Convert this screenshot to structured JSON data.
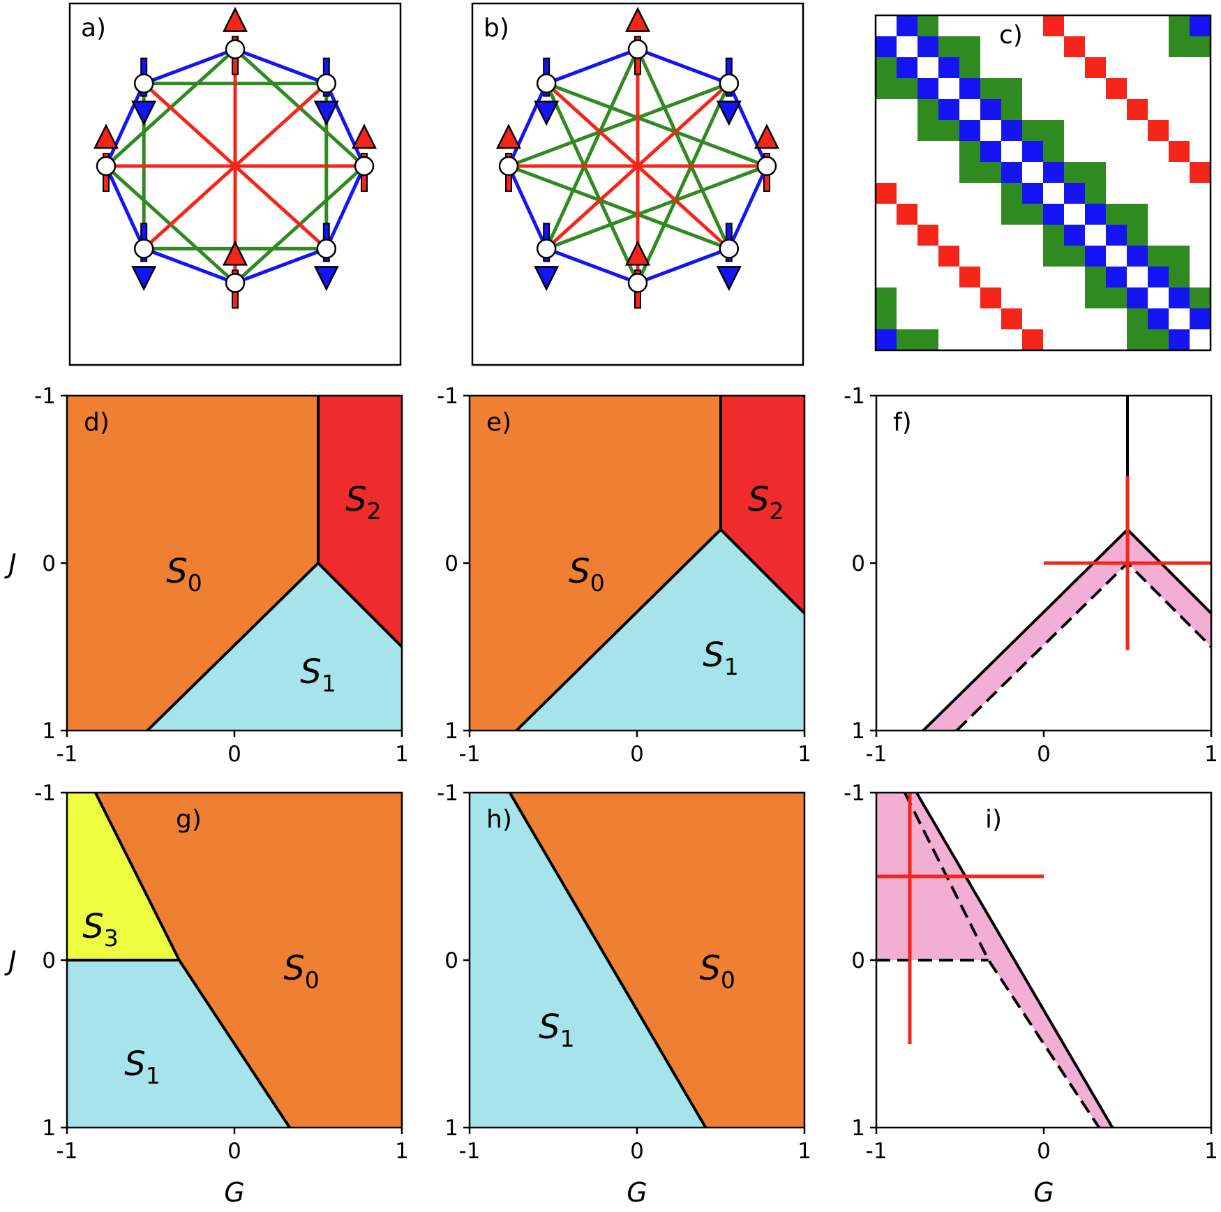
{
  "colors": {
    "S0": "#ef7f33",
    "S1": "#a6e3ea",
    "S2": "#ef2b2b",
    "S3": "#eefd3f",
    "uncertain": "#f3aed4",
    "bond_nn": "#1414f5",
    "bond_nnn": "#2f8a1f",
    "bond_opposite": "#f5251a",
    "spin_up": "#f5251a",
    "spin_down": "#1414f5"
  },
  "panels": {
    "a": {
      "label": "a)"
    },
    "b": {
      "label": "b)"
    },
    "c": {
      "label": "c)"
    },
    "d": {
      "label": "d)",
      "regions": [
        {
          "sym": "S",
          "sub": "0"
        },
        {
          "sym": "S",
          "sub": "2"
        },
        {
          "sym": "S",
          "sub": "1"
        }
      ]
    },
    "e": {
      "label": "e)",
      "regions": [
        {
          "sym": "S",
          "sub": "0"
        },
        {
          "sym": "S",
          "sub": "2"
        },
        {
          "sym": "S",
          "sub": "1"
        }
      ]
    },
    "f": {
      "label": "f)"
    },
    "g": {
      "label": "g)",
      "regions": [
        {
          "sym": "S",
          "sub": "3"
        },
        {
          "sym": "S",
          "sub": "0"
        },
        {
          "sym": "S",
          "sub": "1"
        }
      ]
    },
    "h": {
      "label": "h)",
      "regions": [
        {
          "sym": "S",
          "sub": "0"
        },
        {
          "sym": "S",
          "sub": "1"
        }
      ]
    },
    "i": {
      "label": "i)"
    }
  },
  "axes": {
    "xlabel": "G",
    "ylabel": "J",
    "xticks": [
      "-1",
      "0",
      "1"
    ],
    "yticks": [
      "-1",
      "0",
      "1"
    ]
  },
  "chart_data": [
    {
      "panel": "d",
      "type": "area",
      "xlabel": "",
      "ylabel": "J",
      "xlim": [
        -1,
        1
      ],
      "ylim": [
        -1,
        1
      ],
      "y_inverted": true,
      "boundaries": [
        [
          [
            0.5,
            -1
          ],
          [
            0.5,
            0
          ]
        ],
        [
          [
            -0.52,
            1
          ],
          [
            0.5,
            0
          ],
          [
            1,
            0.5
          ]
        ]
      ],
      "regions": [
        {
          "name": "S0",
          "polygon": [
            [
              -1,
              -1
            ],
            [
              0.5,
              -1
            ],
            [
              0.5,
              0
            ],
            [
              -0.52,
              1
            ],
            [
              -1,
              1
            ]
          ]
        },
        {
          "name": "S2",
          "polygon": [
            [
              0.5,
              -1
            ],
            [
              1,
              -1
            ],
            [
              1,
              0.5
            ],
            [
              0.5,
              0
            ]
          ]
        },
        {
          "name": "S1",
          "polygon": [
            [
              -0.52,
              1
            ],
            [
              0.5,
              0
            ],
            [
              1,
              0.5
            ],
            [
              1,
              1
            ]
          ]
        }
      ]
    },
    {
      "panel": "e",
      "type": "area",
      "xlabel": "",
      "ylabel": "",
      "xlim": [
        -1,
        1
      ],
      "ylim": [
        -1,
        1
      ],
      "y_inverted": true,
      "boundaries": [
        [
          [
            0.5,
            -1
          ],
          [
            0.5,
            -0.2
          ]
        ],
        [
          [
            -0.72,
            1
          ],
          [
            0.5,
            -0.2
          ],
          [
            1,
            0.3
          ]
        ]
      ],
      "regions": [
        {
          "name": "S0",
          "polygon": [
            [
              -1,
              -1
            ],
            [
              0.5,
              -1
            ],
            [
              0.5,
              -0.2
            ],
            [
              -0.72,
              1
            ],
            [
              -1,
              1
            ]
          ]
        },
        {
          "name": "S2",
          "polygon": [
            [
              0.5,
              -1
            ],
            [
              1,
              -1
            ],
            [
              1,
              0.3
            ],
            [
              0.5,
              -0.2
            ]
          ]
        },
        {
          "name": "S1",
          "polygon": [
            [
              -0.72,
              1
            ],
            [
              0.5,
              -0.2
            ],
            [
              1,
              0.3
            ],
            [
              1,
              1
            ]
          ]
        }
      ]
    },
    {
      "panel": "f",
      "type": "area",
      "xlabel": "",
      "ylabel": "",
      "xlim": [
        -1,
        1
      ],
      "ylim": [
        -1,
        1
      ],
      "y_inverted": true,
      "solid": [
        [
          [
            0.5,
            -1
          ],
          [
            0.5,
            -0.2
          ]
        ],
        [
          [
            -0.72,
            1
          ],
          [
            0.5,
            -0.2
          ],
          [
            1,
            0.3
          ]
        ]
      ],
      "dashed": [
        [
          [
            -0.52,
            1
          ],
          [
            0.5,
            0
          ],
          [
            1,
            0.5
          ]
        ]
      ],
      "band": [
        [
          -0.72,
          1
        ],
        [
          0.5,
          -0.2
        ],
        [
          1,
          0.3
        ],
        [
          1,
          0.5
        ],
        [
          0.5,
          0
        ],
        [
          -0.52,
          1
        ]
      ],
      "cross": {
        "center": [
          0.5,
          0
        ],
        "x": [
          0,
          1
        ],
        "y": [
          -0.52,
          0.52
        ]
      }
    },
    {
      "panel": "g",
      "type": "area",
      "xlabel": "G",
      "ylabel": "J",
      "xlim": [
        -1,
        1
      ],
      "ylim": [
        -1,
        1
      ],
      "y_inverted": true,
      "boundaries": [
        [
          [
            -0.83,
            -1
          ],
          [
            -0.33,
            0
          ]
        ],
        [
          [
            -1,
            0
          ],
          [
            -0.33,
            0
          ]
        ],
        [
          [
            -0.33,
            0
          ],
          [
            0.33,
            1
          ]
        ]
      ],
      "regions": [
        {
          "name": "S3",
          "polygon": [
            [
              -1,
              -1
            ],
            [
              -0.83,
              -1
            ],
            [
              -0.33,
              0
            ],
            [
              -1,
              0
            ]
          ]
        },
        {
          "name": "S0",
          "polygon": [
            [
              -0.83,
              -1
            ],
            [
              1,
              -1
            ],
            [
              1,
              1
            ],
            [
              0.33,
              1
            ],
            [
              -0.33,
              0
            ]
          ]
        },
        {
          "name": "S1",
          "polygon": [
            [
              -1,
              0
            ],
            [
              -0.33,
              0
            ],
            [
              0.33,
              1
            ],
            [
              -1,
              1
            ]
          ]
        }
      ]
    },
    {
      "panel": "h",
      "type": "area",
      "xlabel": "G",
      "ylabel": "",
      "xlim": [
        -1,
        1
      ],
      "ylim": [
        -1,
        1
      ],
      "y_inverted": true,
      "boundaries": [
        [
          [
            -0.76,
            -1
          ],
          [
            0.41,
            1
          ]
        ]
      ],
      "regions": [
        {
          "name": "S1",
          "polygon": [
            [
              -1,
              -1
            ],
            [
              -0.76,
              -1
            ],
            [
              0.41,
              1
            ],
            [
              -1,
              1
            ]
          ]
        },
        {
          "name": "S0",
          "polygon": [
            [
              -0.76,
              -1
            ],
            [
              1,
              -1
            ],
            [
              1,
              1
            ],
            [
              0.41,
              1
            ]
          ]
        }
      ]
    },
    {
      "panel": "i",
      "type": "area",
      "xlabel": "G",
      "ylabel": "",
      "xlim": [
        -1,
        1
      ],
      "ylim": [
        -1,
        1
      ],
      "y_inverted": true,
      "solid": [
        [
          [
            -0.76,
            -1
          ],
          [
            0.41,
            1
          ]
        ]
      ],
      "dashed": [
        [
          [
            -0.83,
            -1
          ],
          [
            -0.33,
            0
          ],
          [
            0.33,
            1
          ]
        ],
        [
          [
            -1,
            0
          ],
          [
            -0.33,
            0
          ]
        ]
      ],
      "band": [
        [
          -1,
          -1
        ],
        [
          -0.76,
          -1
        ],
        [
          0.41,
          1
        ],
        [
          0.33,
          1
        ],
        [
          -0.33,
          0
        ],
        [
          -1,
          0
        ]
      ],
      "cross": {
        "center": [
          -0.8,
          -0.5
        ],
        "x": [
          -1,
          0
        ],
        "y": [
          -1,
          0.5
        ]
      }
    }
  ]
}
